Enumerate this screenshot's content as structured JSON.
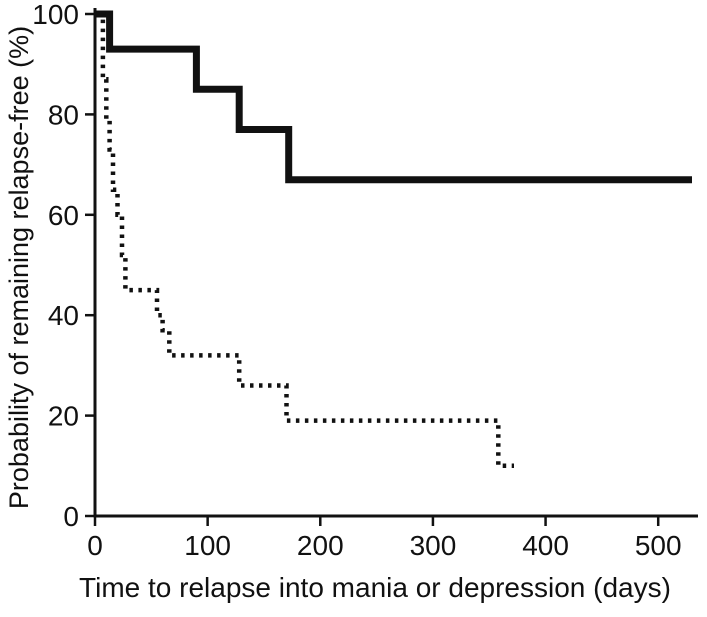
{
  "figure": {
    "background": "#ffffff",
    "line_color": "#111111"
  },
  "chart_data": {
    "type": "line",
    "subtype": "kaplan-meier-step",
    "title": "",
    "xlabel": "Time to relapse into mania or depression (days)",
    "ylabel": "Probability of remaining relapse-free (%)",
    "xlim": [
      0,
      530
    ],
    "ylim": [
      0,
      100
    ],
    "x_ticks": [
      0,
      100,
      200,
      300,
      400,
      500
    ],
    "y_ticks": [
      0,
      20,
      40,
      60,
      80,
      100
    ],
    "grid": false,
    "legend": "none",
    "series": [
      {
        "name": "solid-curve",
        "style": "solid",
        "line_width": 7,
        "points": [
          [
            0,
            100
          ],
          [
            13,
            100
          ],
          [
            13,
            93
          ],
          [
            90,
            93
          ],
          [
            90,
            85
          ],
          [
            128,
            85
          ],
          [
            128,
            77
          ],
          [
            172,
            77
          ],
          [
            172,
            67
          ],
          [
            530,
            67
          ]
        ]
      },
      {
        "name": "dotted-curve",
        "style": "dotted",
        "line_width": 4.5,
        "points": [
          [
            4,
            100
          ],
          [
            7,
            100
          ],
          [
            7,
            87
          ],
          [
            10,
            87
          ],
          [
            10,
            79
          ],
          [
            13,
            79
          ],
          [
            13,
            73
          ],
          [
            16,
            73
          ],
          [
            16,
            65
          ],
          [
            20,
            65
          ],
          [
            20,
            60
          ],
          [
            24,
            60
          ],
          [
            24,
            52
          ],
          [
            27,
            52
          ],
          [
            27,
            45
          ],
          [
            55,
            45
          ],
          [
            55,
            40
          ],
          [
            60,
            40
          ],
          [
            60,
            37
          ],
          [
            66,
            37
          ],
          [
            66,
            32
          ],
          [
            128,
            32
          ],
          [
            128,
            26
          ],
          [
            170,
            26
          ],
          [
            170,
            19
          ],
          [
            358,
            19
          ],
          [
            358,
            10
          ],
          [
            372,
            10
          ]
        ]
      }
    ]
  }
}
